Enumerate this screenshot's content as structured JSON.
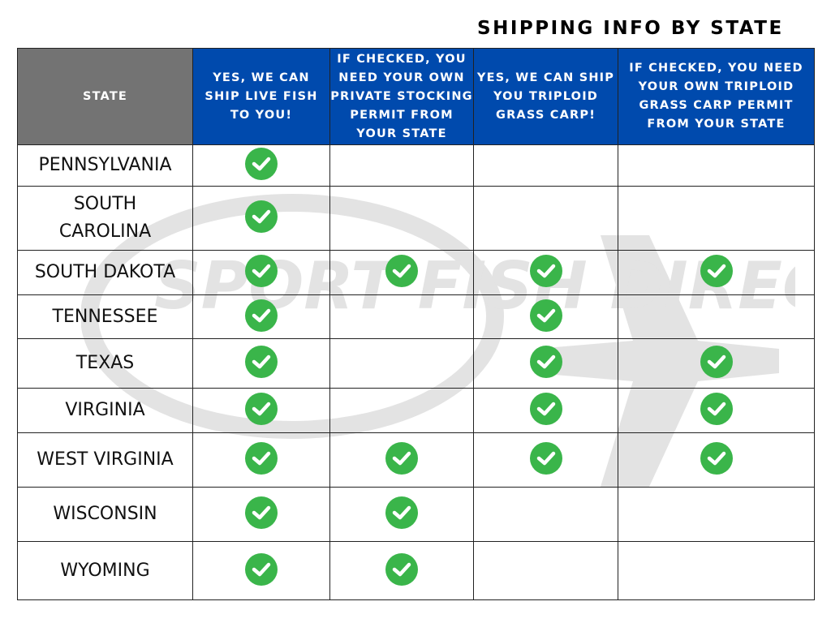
{
  "title": "SHIPPING INFO BY STATE",
  "watermark": "SPORT FISH DIRECT",
  "colors": {
    "header_blue": "#004aad",
    "header_gray": "#737373",
    "check_green": "#3ab54a"
  },
  "check_icon": "green-circle-checkmark",
  "columns": [
    "STATE",
    "YES, WE CAN SHIP LIVE FISH TO YOU!",
    "IF CHECKED, YOU NEED YOUR OWN PRIVATE STOCKING PERMIT FROM YOUR STATE",
    "YES, WE CAN SHIP YOU TRIPLOID GRASS CARP!",
    "IF CHECKED, YOU NEED YOUR OWN TRIPLOID GRASS CARP PERMIT FROM YOUR STATE"
  ],
  "rows": [
    {
      "state": "PENNSYLVANIA",
      "checks": [
        true,
        false,
        false,
        false
      ]
    },
    {
      "state": "SOUTH CAROLINA",
      "checks": [
        true,
        false,
        false,
        false
      ]
    },
    {
      "state": "SOUTH DAKOTA",
      "checks": [
        true,
        true,
        true,
        true
      ]
    },
    {
      "state": "TENNESSEE",
      "checks": [
        true,
        false,
        true,
        false
      ]
    },
    {
      "state": "TEXAS",
      "checks": [
        true,
        false,
        true,
        true
      ]
    },
    {
      "state": "VIRGINIA",
      "checks": [
        true,
        false,
        true,
        true
      ]
    },
    {
      "state": "WEST VIRGINIA",
      "checks": [
        true,
        true,
        true,
        true
      ]
    },
    {
      "state": "WISCONSIN",
      "checks": [
        true,
        true,
        false,
        false
      ]
    },
    {
      "state": "WYOMING",
      "checks": [
        true,
        true,
        false,
        false
      ]
    }
  ]
}
